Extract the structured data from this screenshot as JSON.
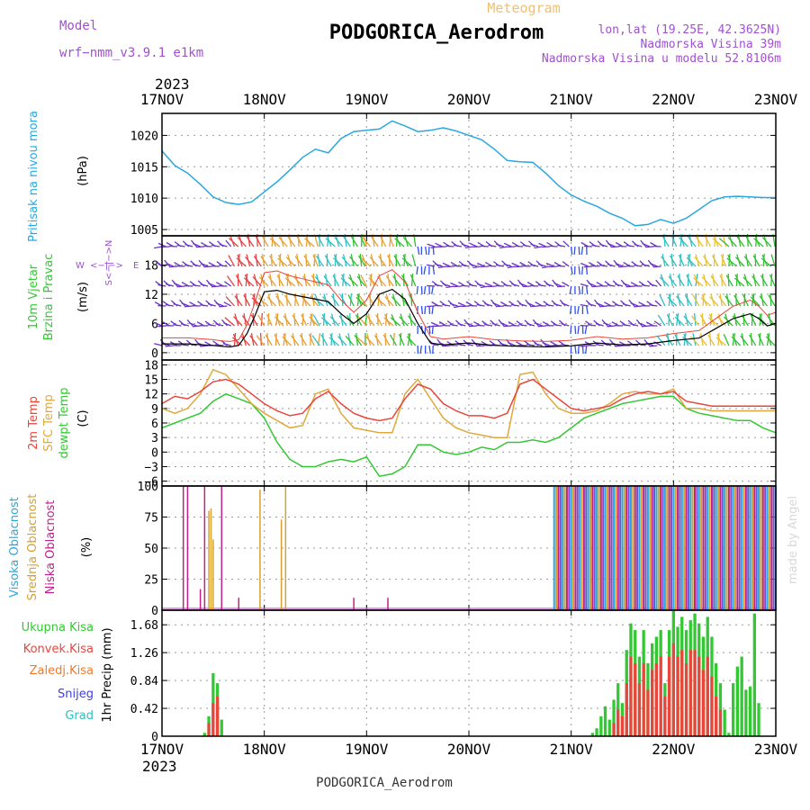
{
  "header": {
    "model_label": "Model",
    "model_name": "wrf−nmm_v3.9.1  e1km",
    "meteogram_label": "Meteogram",
    "station": "PODGORICA_Aerodrom",
    "coords": "lon,lat (19.25E, 42.3625N)",
    "elevation": "Nadmorska Visina 39m",
    "model_elevation": "Nadmorska Visina u modelu 52.8106m",
    "year_top": "2023",
    "year_bottom": "2023",
    "footer": "PODGORICA_Aerodrom",
    "credit": "made by Angel"
  },
  "colors": {
    "pressure": "#29a8e0",
    "wind_speed": "#000000",
    "temp_2m": "#e8463c",
    "temp_sfc": "#e0a83c",
    "dewpoint": "#33c833",
    "cloud_high": "#29a8e0",
    "cloud_mid": "#d8a030",
    "cloud_low": "#c0208a",
    "precip_total": "#33c833",
    "precip_conv": "#e8463c",
    "precip_strat": "#f07a30",
    "snow": "#4040e0",
    "hail": "#30c0c0",
    "violet_text": "#a050d0",
    "orange_text": "#f0c070"
  },
  "chart_data": [
    {
      "type": "line",
      "id": "pressure",
      "title": "Pritisak na nivou mora",
      "ylabel": "(hPa)",
      "ylim": [
        1004,
        1023.5
      ],
      "yticks": [
        1005,
        1010,
        1015,
        1020
      ],
      "xlim": [
        0,
        144
      ],
      "x_tick_labels": [
        "17NOV",
        "18NOV",
        "19NOV",
        "20NOV",
        "21NOV",
        "22NOV",
        "23NOV"
      ],
      "grid": true,
      "series": [
        {
          "name": "",
          "x": [
            0,
            3,
            6,
            9,
            12,
            15,
            18,
            21,
            24,
            27,
            30,
            33,
            36,
            39,
            42,
            45,
            48,
            51,
            54,
            57,
            60,
            63,
            66,
            69,
            72,
            75,
            78,
            81,
            84,
            87,
            90,
            93,
            96,
            99,
            102,
            105,
            108,
            111,
            114,
            117,
            120,
            123,
            126,
            129,
            132,
            135,
            138,
            141,
            144
          ],
          "values": [
            1017.5,
            1015.2,
            1014.0,
            1012.2,
            1010.2,
            1009.3,
            1009.0,
            1009.4,
            1011.0,
            1012.6,
            1014.5,
            1016.5,
            1017.8,
            1017.2,
            1019.5,
            1020.6,
            1020.8,
            1021.0,
            1022.3,
            1021.5,
            1020.6,
            1020.8,
            1021.2,
            1020.7,
            1020.0,
            1019.3,
            1017.8,
            1016.0,
            1015.8,
            1015.7,
            1014.0,
            1012.0,
            1010.5,
            1009.5,
            1008.7,
            1007.6,
            1006.8,
            1005.6,
            1005.8,
            1006.6,
            1006.0,
            1006.8,
            1008.2,
            1009.6,
            1010.2,
            1010.3,
            1010.2,
            1010.1,
            1010.1
          ]
        }
      ]
    },
    {
      "type": "line",
      "id": "wind",
      "title": "10m Vjetar Brzina i Pravac",
      "ylabel": "(m/s)",
      "ylim": [
        -1.5,
        24
      ],
      "yticks": [
        0,
        6,
        12,
        18
      ],
      "xlim": [
        0,
        144
      ],
      "grid": true,
      "compass": [
        "W",
        "E",
        "N",
        "S"
      ],
      "series": [
        {
          "name": "",
          "x": [
            0,
            6,
            12,
            14,
            16,
            18,
            20,
            22,
            24,
            27,
            30,
            33,
            36,
            39,
            42,
            45,
            48,
            51,
            54,
            57,
            60,
            63,
            66,
            69,
            72,
            78,
            84,
            90,
            96,
            102,
            108,
            114,
            120,
            126,
            130,
            134,
            138,
            140,
            142,
            144
          ],
          "values": [
            1.8,
            1.8,
            1.5,
            1.3,
            1.2,
            1.5,
            4,
            8,
            12.5,
            12.8,
            12,
            11.5,
            11,
            10.5,
            8,
            6,
            8,
            12,
            13,
            11,
            6,
            2,
            1.6,
            1.8,
            2,
            1.5,
            1.3,
            1.2,
            1.4,
            2,
            1.6,
            1.8,
            2.5,
            3,
            5,
            7,
            8,
            7,
            5.5,
            6
          ]
        }
      ],
      "arrow_regimes": [
        {
          "x0": 0,
          "x1": 17,
          "color": "#6a30c8"
        },
        {
          "x0": 17,
          "x1": 24,
          "color": "#e84040"
        },
        {
          "x0": 24,
          "x1": 37,
          "color": "#e8a030"
        },
        {
          "x0": 37,
          "x1": 45,
          "color": "#30c0c0"
        },
        {
          "x0": 45,
          "x1": 48,
          "color": "#30c030"
        },
        {
          "x0": 48,
          "x1": 55,
          "color": "#e8a030"
        },
        {
          "x0": 55,
          "x1": 60,
          "color": "#30c030"
        },
        {
          "x0": 60,
          "x1": 64,
          "color": "#3050e8"
        },
        {
          "x0": 64,
          "x1": 96,
          "color": "#6a30c8"
        },
        {
          "x0": 96,
          "x1": 100,
          "color": "#3050e8"
        },
        {
          "x0": 100,
          "x1": 118,
          "color": "#6a30c8"
        },
        {
          "x0": 118,
          "x1": 126,
          "color": "#30c0c0"
        },
        {
          "x0": 126,
          "x1": 133,
          "color": "#e8c030"
        },
        {
          "x0": 133,
          "x1": 144,
          "color": "#30c030"
        }
      ]
    },
    {
      "type": "line",
      "id": "temperature",
      "title": [
        "2m Temp",
        "SFC Temp",
        "dewpt Temp"
      ],
      "ylabel": "(C)",
      "ylim": [
        -7,
        19
      ],
      "yticks": [
        -6,
        -3,
        0,
        3,
        6,
        9,
        12,
        15,
        18
      ],
      "xlim": [
        0,
        144
      ],
      "grid": true,
      "series": [
        {
          "name": "2m Temp",
          "x": [
            0,
            3,
            6,
            9,
            12,
            15,
            18,
            21,
            24,
            27,
            30,
            33,
            36,
            39,
            42,
            45,
            48,
            51,
            54,
            57,
            60,
            63,
            66,
            69,
            72,
            75,
            78,
            81,
            84,
            87,
            90,
            93,
            96,
            99,
            102,
            105,
            108,
            111,
            114,
            117,
            120,
            123,
            126,
            129,
            132,
            135,
            138,
            141,
            144
          ],
          "values": [
            10,
            11.5,
            11,
            12.5,
            14.5,
            15,
            14,
            12,
            10,
            8.5,
            7.5,
            8,
            11,
            12.5,
            10,
            8,
            7,
            6.5,
            7,
            11,
            14,
            13,
            10,
            8.5,
            7.5,
            7.5,
            7,
            8,
            14,
            15,
            13,
            11,
            9,
            8.5,
            9,
            9.5,
            11,
            12,
            12.5,
            12,
            12.5,
            10.5,
            10,
            9.5,
            9.5,
            9.5,
            9.5,
            9.5,
            9.5
          ]
        },
        {
          "name": "SFC Temp",
          "x": [
            0,
            3,
            6,
            9,
            12,
            15,
            18,
            21,
            24,
            27,
            30,
            33,
            36,
            39,
            42,
            45,
            48,
            51,
            54,
            57,
            60,
            63,
            66,
            69,
            72,
            75,
            78,
            81,
            84,
            87,
            90,
            93,
            96,
            99,
            102,
            105,
            108,
            111,
            114,
            117,
            120,
            123,
            126,
            129,
            132,
            135,
            138,
            141,
            144
          ],
          "values": [
            9,
            8,
            9,
            12,
            17,
            16,
            13,
            10,
            8,
            6.5,
            5,
            5.5,
            12,
            13,
            8,
            5,
            4.5,
            4,
            4,
            12,
            15,
            11,
            7,
            5,
            4,
            3.5,
            3,
            3,
            16,
            16.5,
            12,
            9,
            8,
            8,
            8.5,
            10,
            12,
            12.5,
            12,
            12,
            13,
            9,
            9,
            8.5,
            8.5,
            8.5,
            8.5,
            8.5,
            8.5
          ]
        },
        {
          "name": "dewpt Temp",
          "x": [
            0,
            3,
            6,
            9,
            12,
            15,
            18,
            21,
            24,
            27,
            30,
            33,
            36,
            39,
            42,
            45,
            48,
            51,
            54,
            57,
            60,
            63,
            66,
            69,
            72,
            75,
            78,
            81,
            84,
            87,
            90,
            93,
            96,
            99,
            102,
            105,
            108,
            111,
            114,
            117,
            120,
            123,
            126,
            129,
            132,
            135,
            138,
            141,
            144
          ],
          "values": [
            5,
            6,
            7,
            8,
            10.5,
            12,
            11,
            10,
            7,
            2,
            -1.5,
            -3,
            -3,
            -2,
            -1.5,
            -2,
            -1,
            -5,
            -4.5,
            -3,
            1.5,
            1.5,
            0,
            -0.5,
            0,
            1,
            0.5,
            2,
            2,
            2.5,
            2,
            3,
            5,
            7,
            8,
            9,
            10,
            10.5,
            11,
            11.5,
            11.5,
            9,
            8,
            7.5,
            7,
            6.5,
            6.5,
            5,
            4
          ]
        }
      ]
    },
    {
      "type": "bar",
      "id": "cloud",
      "title": [
        "Visoka Oblacnost",
        "Srednja Oblacnost",
        "Niska Oblacnost"
      ],
      "ylabel": "(%)",
      "ylim": [
        0,
        100
      ],
      "yticks": [
        0,
        25,
        50,
        75,
        100
      ],
      "xlim": [
        0,
        144
      ],
      "grid": true,
      "series": [
        {
          "name": "Niska Oblacnost",
          "x": [
            5,
            6,
            9,
            10,
            14,
            18,
            45,
            53
          ],
          "values": [
            100,
            100,
            17,
            100,
            100,
            10,
            10,
            10
          ]
        },
        {
          "name": "Srednja Oblacnost",
          "x": [
            11,
            11.5,
            12,
            23,
            28,
            29
          ],
          "values": [
            80,
            82,
            57,
            97,
            73,
            100
          ]
        },
        {
          "name": "Visoka Oblacnost",
          "x": [],
          "values": []
        }
      ],
      "dense_block": {
        "x0": 92,
        "x1": 144,
        "value": 100,
        "step": 0.5
      }
    },
    {
      "type": "bar",
      "id": "precip",
      "title": [
        "Ukupna Kisa",
        "Konvek.Kisa",
        "Zaledj.Kisa",
        "Snijeg",
        "Grad"
      ],
      "ylabel": "1hr Precip (mm)",
      "ylim": [
        0,
        1.9
      ],
      "yticks": [
        0,
        0.42,
        0.84,
        1.26,
        1.68
      ],
      "xlim": [
        0,
        144
      ],
      "x_tick_labels": [
        "17NOV",
        "18NOV",
        "19NOV",
        "20NOV",
        "21NOV",
        "22NOV",
        "23NOV"
      ],
      "grid": true,
      "series": [
        {
          "name": "Ukupna Kisa",
          "x": [
            10,
            11,
            12,
            13,
            14,
            101,
            102,
            103,
            104,
            105,
            106,
            107,
            108,
            109,
            110,
            111,
            112,
            113,
            114,
            115,
            116,
            117,
            118,
            119,
            120,
            121,
            122,
            123,
            124,
            125,
            126,
            127,
            128,
            129,
            130,
            131,
            132,
            133,
            134,
            135,
            136,
            137,
            138,
            139,
            140
          ],
          "values": [
            0.05,
            0.3,
            0.95,
            0.8,
            0.25,
            0.05,
            0.12,
            0.3,
            0.45,
            0.25,
            0.55,
            0.8,
            0.5,
            1.3,
            1.7,
            1.6,
            1.2,
            1.6,
            1.1,
            1.4,
            1.5,
            1.6,
            0.8,
            1.6,
            1.9,
            1.65,
            1.8,
            1.6,
            1.75,
            1.85,
            1.7,
            1.5,
            1.8,
            1.5,
            1.1,
            0.8,
            0.4,
            0.05,
            0.8,
            1.05,
            1.2,
            0.7,
            0.75,
            1.85,
            0.5
          ]
        },
        {
          "name": "Konvek.Kisa",
          "x": [
            11,
            12,
            13,
            106,
            107,
            108,
            109,
            110,
            111,
            112,
            113,
            114,
            115,
            116,
            117,
            118,
            119,
            120,
            121,
            122,
            123,
            124,
            125,
            126,
            127,
            128,
            129,
            130,
            131
          ],
          "values": [
            0.2,
            0.5,
            0.6,
            0.2,
            0.4,
            0.3,
            0.8,
            1.2,
            1.1,
            0.8,
            1.1,
            0.7,
            1.0,
            1.1,
            1.2,
            0.6,
            1.2,
            1.4,
            1.2,
            1.3,
            1.1,
            1.3,
            1.3,
            1.2,
            1.0,
            1.2,
            0.9,
            0.6,
            0.4
          ]
        },
        {
          "name": "Zaledj.Kisa",
          "x": [],
          "values": []
        },
        {
          "name": "Snijeg",
          "x": [],
          "values": []
        },
        {
          "name": "Grad",
          "x": [],
          "values": []
        }
      ]
    }
  ]
}
